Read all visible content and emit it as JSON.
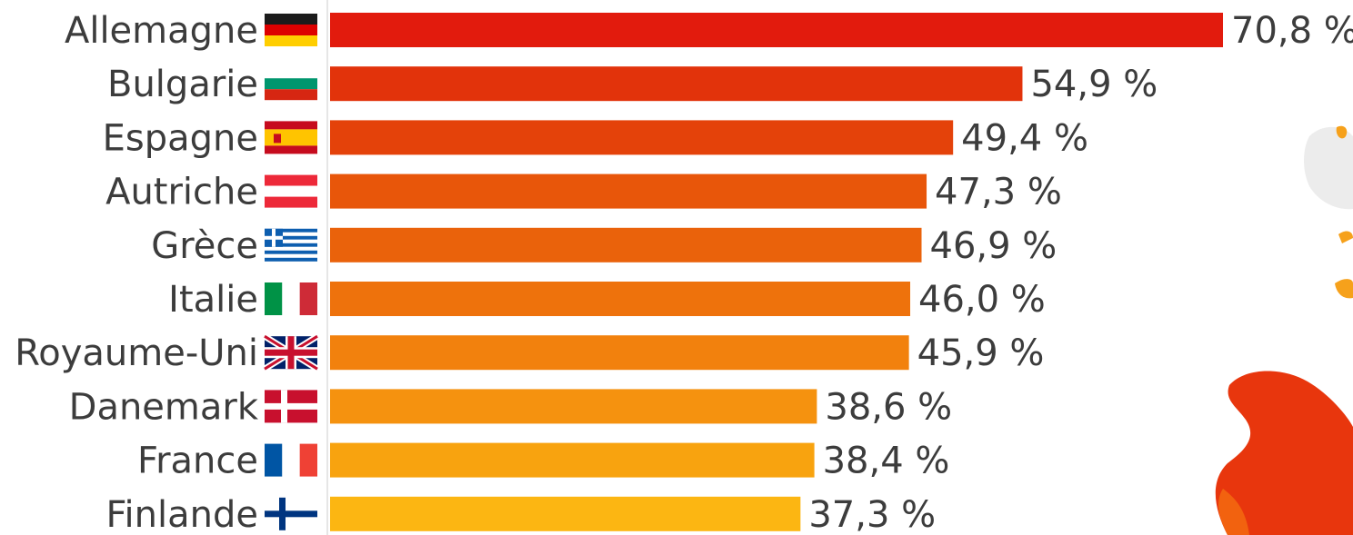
{
  "chart_data": {
    "type": "bar",
    "orientation": "horizontal",
    "categories": [
      "Allemagne",
      "Bulgarie",
      "Espagne",
      "Autriche",
      "Grèce",
      "Italie",
      "Royaume-Uni",
      "Danemark",
      "France",
      "Finlande"
    ],
    "values": [
      70.8,
      54.9,
      49.4,
      47.3,
      46.9,
      46.0,
      45.9,
      38.6,
      38.4,
      37.3
    ],
    "value_labels": [
      "70,8 %",
      "54,9 %",
      "49,4 %",
      "47,3 %",
      "46,9 %",
      "46,0 %",
      "45,9 %",
      "38,6 %",
      "38,4 %",
      "37,3 %"
    ],
    "bar_colors": [
      "#e21b0d",
      "#e2330b",
      "#e4420a",
      "#e8560a",
      "#ea620b",
      "#ee720c",
      "#f2810d",
      "#f5920f",
      "#f8a30f",
      "#fcb612"
    ],
    "flags": [
      "flag-germany-icon",
      "flag-bulgaria-icon",
      "flag-spain-icon",
      "flag-austria-icon",
      "flag-greece-icon",
      "flag-italy-icon",
      "flag-uk-icon",
      "flag-denmark-icon",
      "flag-france-icon",
      "flag-finland-icon"
    ],
    "title": "",
    "xlabel": "",
    "ylabel": "",
    "xlim": [
      0,
      70.8
    ],
    "grid": false,
    "legend": "none"
  }
}
